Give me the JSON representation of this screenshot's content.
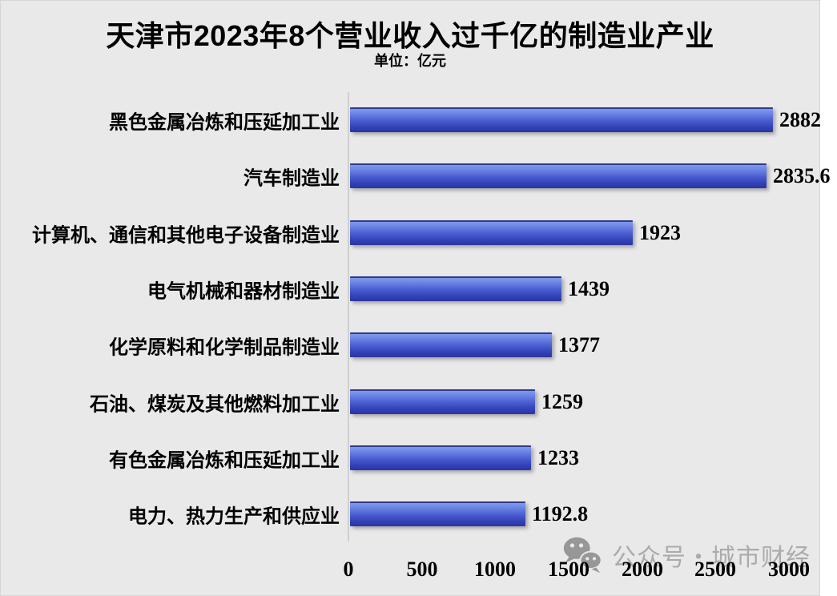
{
  "title": "天津市2023年8个营业收入过千亿的制造业产业",
  "subtitle": "单位：亿元",
  "chart_data": {
    "type": "bar",
    "orientation": "horizontal",
    "title": "天津市2023年8个营业收入过千亿的制造业产业",
    "unit": "亿元",
    "categories": [
      "黑色金属冶炼和压延加工业",
      "汽车制造业",
      "计算机、通信和其他电子设备制造业",
      "电气机械和器材制造业",
      "化学原料和化学制品制造业",
      "石油、煤炭及其他燃料加工业",
      "有色金属冶炼和压延加工业",
      "电力、热力生产和供应业"
    ],
    "values": [
      2882,
      2835.6,
      1923,
      1439,
      1377,
      1259,
      1233,
      1192.8
    ],
    "value_labels": [
      "2882",
      "2835.6",
      "1923",
      "1439",
      "1377",
      "1259",
      "1233",
      "1192.8"
    ],
    "x_ticks": [
      0,
      500,
      1000,
      1500,
      2000,
      2500,
      3000
    ],
    "xlim": [
      0,
      3000
    ],
    "grid": false,
    "legend": "none",
    "bar_color": "#4156cc",
    "bar_gradient": [
      "#809aec",
      "#4558cd",
      "#2b35a0"
    ]
  },
  "watermark": {
    "icon": "wechat-icon",
    "text": "公众号・城市财经"
  },
  "colors": {
    "background": "#e9e9e9",
    "text": "#000000",
    "axis_line": "#cfcfcf",
    "watermark_text": "#7d7d7d"
  }
}
